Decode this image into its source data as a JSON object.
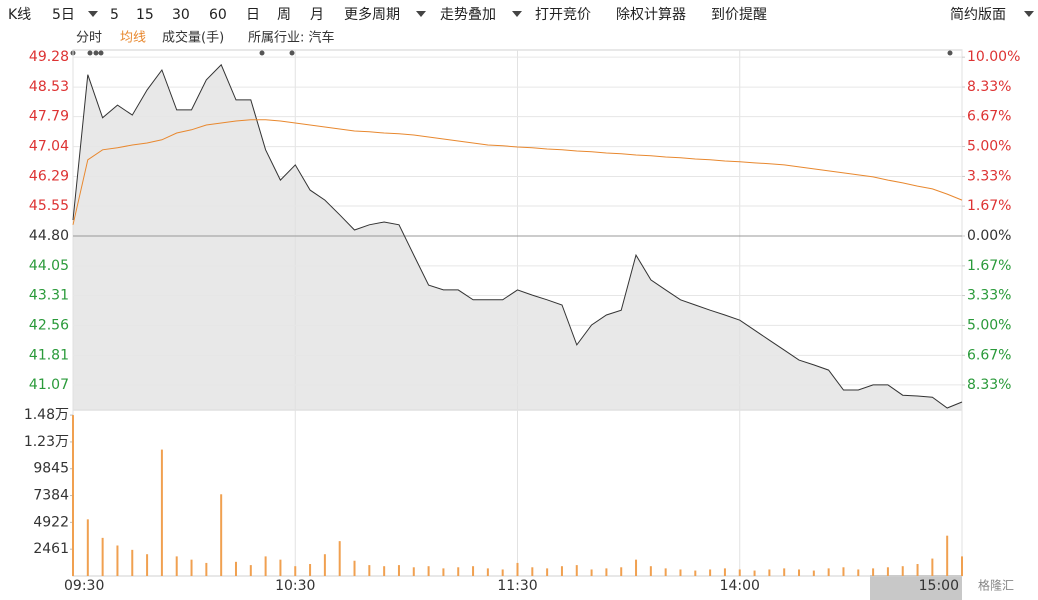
{
  "toolbar": {
    "items": [
      "K线",
      "5日",
      "5",
      "15",
      "30",
      "60",
      "日",
      "周",
      "月",
      "更多周期",
      "走势叠加",
      "打开竞价",
      "除权计算器",
      "到价提醒"
    ],
    "right": "简约版面",
    "industry": "所属行业: 汽车"
  },
  "watermark": "格隆汇",
  "chart_data": [
    {
      "type": "line",
      "x": [
        0,
        4,
        8,
        12,
        16,
        20,
        24,
        28,
        32,
        36,
        40,
        44,
        48,
        52,
        56,
        60,
        64,
        68,
        72,
        76,
        80,
        84,
        88,
        92,
        96,
        100,
        104,
        108,
        112,
        116,
        120,
        124,
        128,
        132,
        136,
        140,
        144,
        148,
        152,
        156,
        160,
        164,
        168,
        172,
        176,
        180,
        184,
        188,
        192,
        196,
        200,
        204,
        208,
        212,
        216,
        220,
        224,
        228,
        232,
        236,
        240
      ],
      "ylim": [
        40.44,
        49.46
      ],
      "yticks": [
        49.28,
        48.53,
        47.79,
        47.04,
        46.29,
        45.55,
        {
          "value": 44.8,
          "label": "44.80"
        },
        44.05,
        43.31,
        42.56,
        41.81,
        41.07
      ],
      "y2lim": [
        -9.73,
        10.4
      ],
      "y2ticks": [
        {
          "value": 10,
          "label": "10.00%"
        },
        {
          "value": 8.33,
          "label": "8.33%"
        },
        {
          "value": 6.67,
          "label": "6.67%"
        },
        {
          "value": 5,
          "label": "5.00%"
        },
        {
          "value": 3.33,
          "label": "3.33%"
        },
        {
          "value": 1.67,
          "label": "1.67%"
        },
        {
          "value": 0,
          "label": "0.00%"
        },
        {
          "value": -1.67,
          "label": "1.67%"
        },
        {
          "value": -3.33,
          "label": "3.33%"
        },
        {
          "value": -5,
          "label": "5.00%"
        },
        {
          "value": -6.67,
          "label": "6.67%"
        },
        {
          "value": -8.33,
          "label": "8.33%"
        }
      ],
      "grid": true,
      "area": true,
      "series": [
        {
          "name": "分时",
          "color": "#333333",
          "values": [
            45.2,
            48.84,
            47.76,
            48.08,
            47.83,
            48.46,
            48.96,
            47.96,
            47.96,
            48.71,
            49.09,
            48.21,
            48.21,
            46.96,
            46.2,
            46.58,
            45.95,
            45.7,
            45.33,
            44.95,
            45.08,
            45.15,
            45.08,
            44.32,
            43.57,
            43.45,
            43.45,
            43.2,
            43.2,
            43.2,
            43.45,
            43.32,
            43.2,
            43.07,
            42.07,
            42.57,
            42.82,
            42.94,
            44.32,
            43.7,
            43.45,
            43.2,
            43.07,
            42.94,
            42.82,
            42.69,
            42.44,
            42.19,
            41.94,
            41.69,
            41.57,
            41.44,
            40.94,
            40.94,
            41.07,
            41.07,
            40.81,
            40.79,
            40.76,
            40.49,
            40.64
          ]
        },
        {
          "name": "均线",
          "color": "#e8882f",
          "values": [
            45.08,
            46.71,
            46.96,
            47.01,
            47.08,
            47.13,
            47.21,
            47.38,
            47.46,
            47.58,
            47.63,
            47.68,
            47.71,
            47.71,
            47.68,
            47.63,
            47.58,
            47.53,
            47.48,
            47.43,
            47.41,
            47.38,
            47.36,
            47.33,
            47.28,
            47.23,
            47.18,
            47.13,
            47.08,
            47.06,
            47.03,
            47.01,
            46.98,
            46.96,
            46.93,
            46.91,
            46.88,
            46.86,
            46.83,
            46.81,
            46.78,
            46.76,
            46.73,
            46.71,
            46.68,
            46.66,
            46.63,
            46.61,
            46.58,
            46.53,
            46.48,
            46.43,
            46.38,
            46.33,
            46.28,
            46.2,
            46.13,
            46.05,
            45.98,
            45.85,
            45.7
          ]
        }
      ]
    },
    {
      "type": "bar",
      "title": "成交量(手)",
      "color": "#f0a050",
      "values": [
        14766,
        5200,
        3500,
        2800,
        2400,
        2000,
        11600,
        1800,
        1500,
        1200,
        7500,
        1300,
        1000,
        1800,
        1500,
        900,
        1100,
        2000,
        3200,
        1400,
        1000,
        900,
        1000,
        800,
        900,
        700,
        800,
        900,
        700,
        600,
        1200,
        800,
        700,
        900,
        1000,
        600,
        700,
        800,
        1500,
        900,
        700,
        600,
        500,
        600,
        700,
        600,
        500,
        600,
        700,
        600,
        500,
        700,
        800,
        600,
        700,
        800,
        900,
        1100,
        1600,
        3700,
        1800
      ],
      "ylim": [
        0,
        15234
      ],
      "yticks": [
        {
          "value": 14766,
          "label": "1.48万"
        },
        {
          "value": 12305,
          "label": "1.23万"
        },
        9845,
        7384,
        4922,
        2461
      ],
      "xlim": [
        0,
        240
      ],
      "xticks": [
        {
          "value": 0,
          "label": "09:30"
        },
        {
          "value": 60,
          "label": "10:30"
        },
        {
          "value": 120,
          "label": "11:30"
        },
        {
          "value": 180,
          "label": "14:00"
        },
        {
          "value": 240,
          "label": "15:00"
        }
      ]
    }
  ]
}
